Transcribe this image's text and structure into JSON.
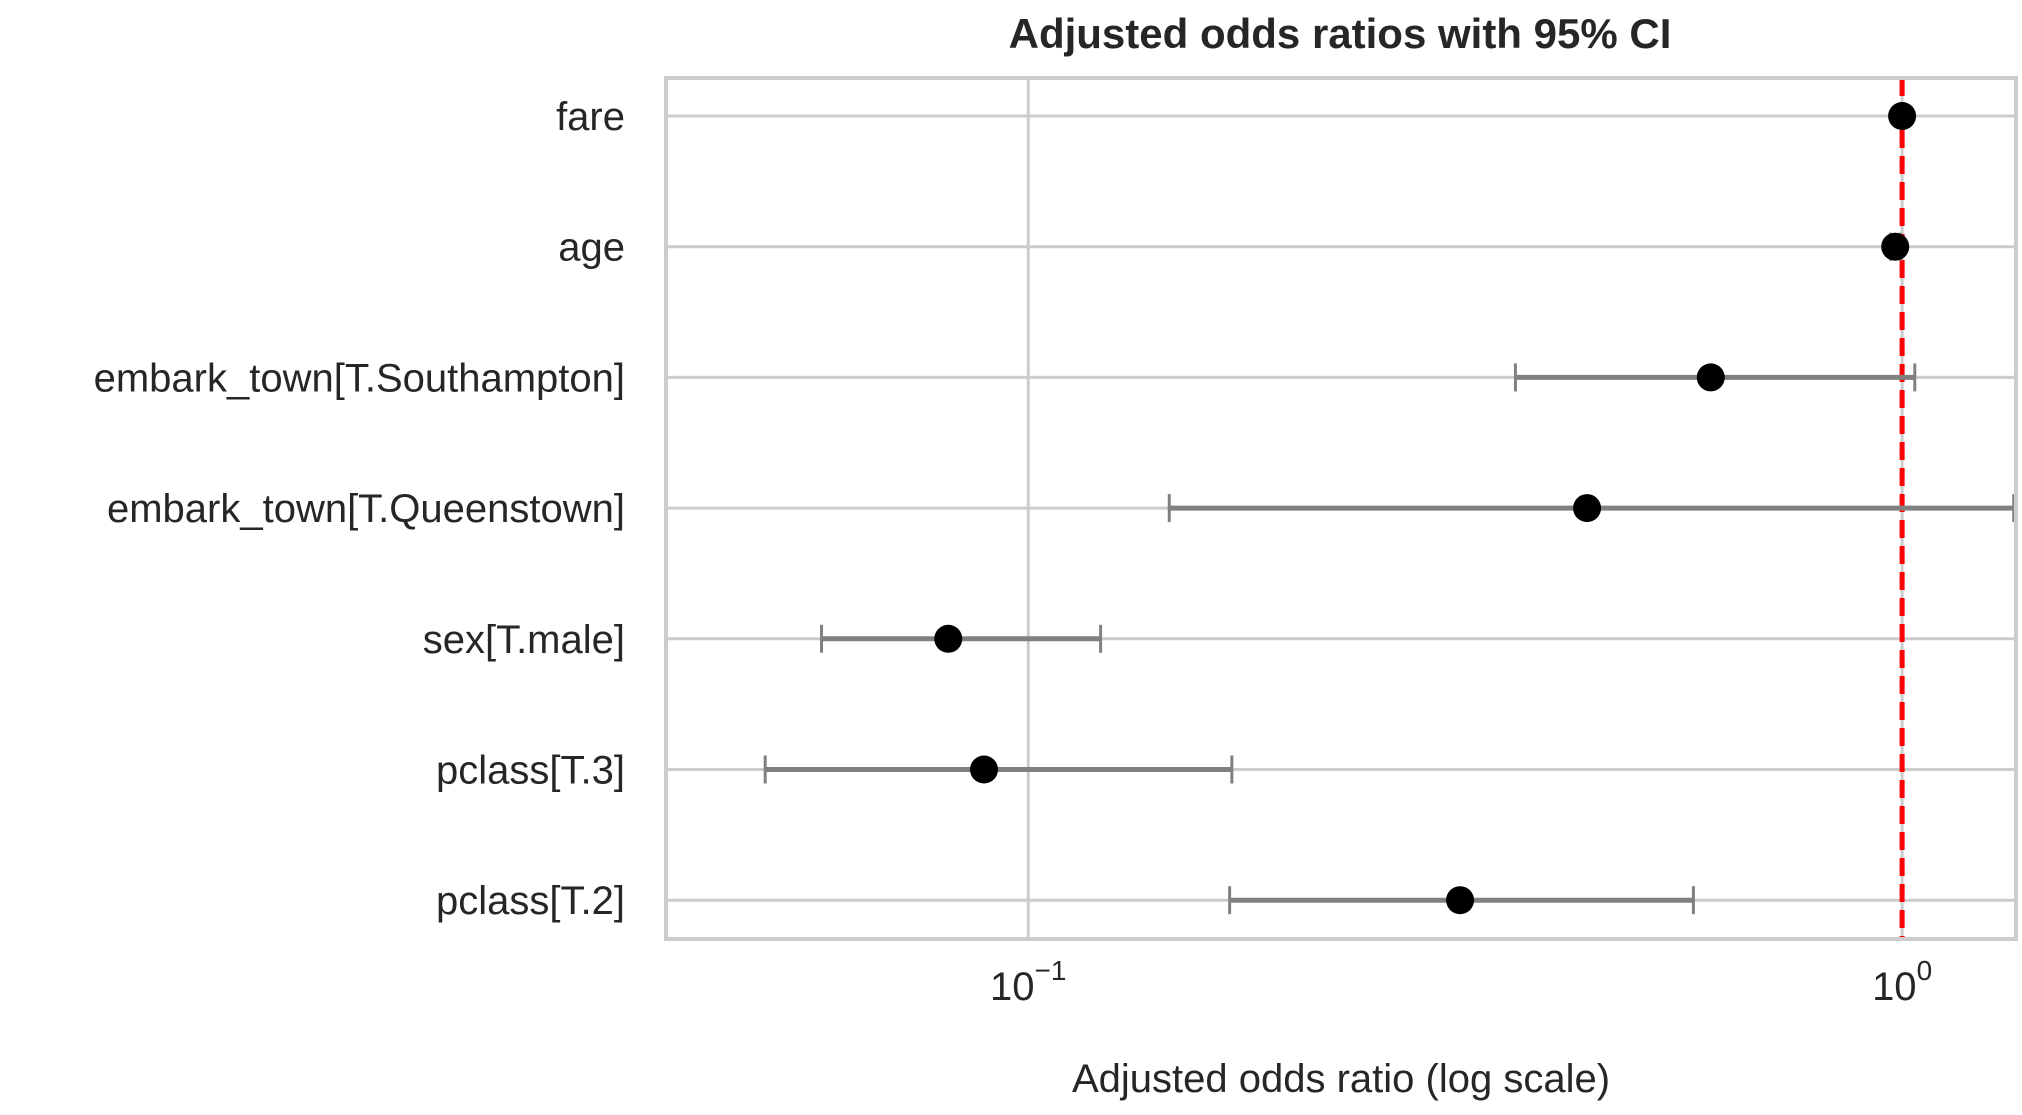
{
  "chart_data": {
    "type": "scatter",
    "title": "Adjusted odds ratios with 95% CI",
    "xlabel": "Adjusted odds ratio (log scale)",
    "ylabel": "",
    "x_scale": "log",
    "xlim": [
      0.0385,
      1.35
    ],
    "x_ticks": [
      {
        "value": 0.1,
        "base": "10",
        "exponent": "−1"
      },
      {
        "value": 1,
        "base": "10",
        "exponent": "0"
      }
    ],
    "reference_line": {
      "x": 1,
      "color": "#ff0000",
      "style": "dashed"
    },
    "grid": true,
    "marker_color": "#000000",
    "errorbar_color": "#808080",
    "categories": [
      "fare",
      "age",
      "embark_town[T.Southampton]",
      "embark_town[T.Queenstown]",
      "sex[T.male]",
      "pclass[T.3]",
      "pclass[T.2]"
    ],
    "estimates": [
      1.0,
      0.982,
      0.604,
      0.436,
      0.081,
      0.089,
      0.312
    ],
    "ci_lower": [
      0.998,
      0.97,
      0.361,
      0.145,
      0.058,
      0.05,
      0.17
    ],
    "ci_upper": [
      1.003,
      0.995,
      1.034,
      1.342,
      0.121,
      0.171,
      0.577
    ]
  }
}
